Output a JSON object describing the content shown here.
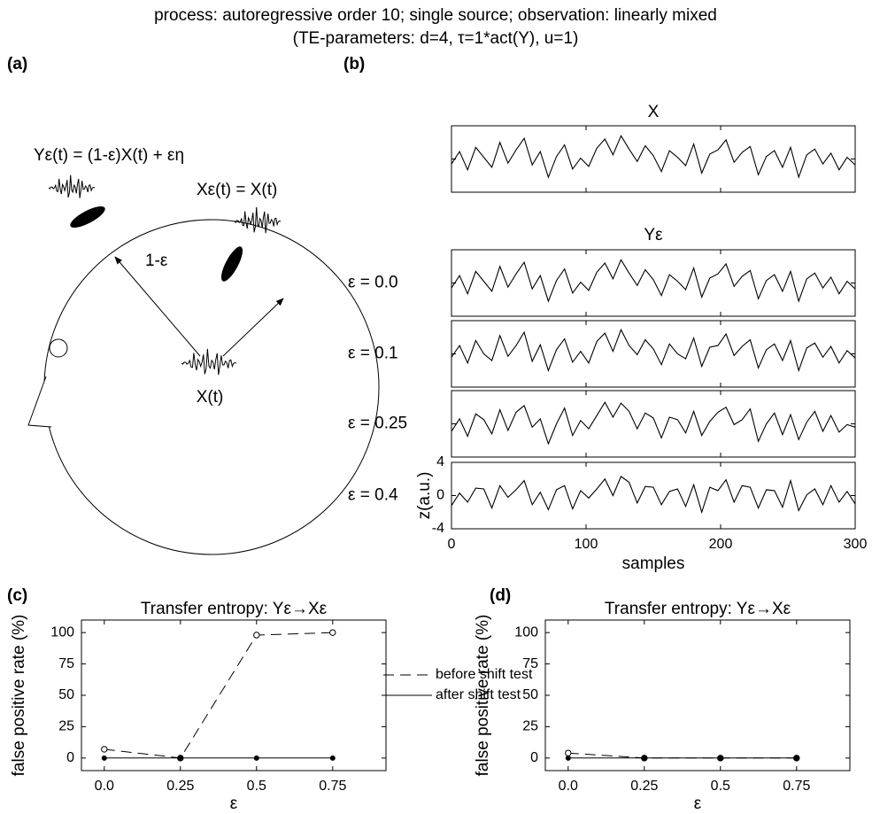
{
  "title": "process: autoregressive order 10; single source; observation: linearly mixed",
  "subtitle": "(TE-parameters: d=4, τ=1*act(Y), u=1)",
  "diagram": {
    "panel": "(a)",
    "y_label": "Yε(t) = (1-ε)X(t) + εη",
    "x_label": "Xε(t) = X(t)",
    "arrow_label": "1-ε",
    "source_label": "X(t)"
  },
  "chart_data": [
    {
      "type": "line",
      "panel": "(b)",
      "small_multiples": true,
      "group_title": "Yε",
      "x": [
        0,
        6,
        12,
        18,
        24,
        30,
        36,
        42,
        48,
        54,
        60,
        66,
        72,
        78,
        84,
        90,
        96,
        102,
        108,
        114,
        120,
        126,
        132,
        138,
        144,
        150,
        156,
        162,
        168,
        174,
        180,
        186,
        192,
        198,
        204,
        210,
        216,
        222,
        228,
        234,
        240,
        246,
        252,
        258,
        264,
        270,
        276,
        282,
        288,
        294,
        300
      ],
      "xlim": [
        0,
        300
      ],
      "xticks": [
        0,
        100,
        200,
        300
      ],
      "ylim": [
        -4,
        4
      ],
      "yticks": [
        -4,
        0,
        4
      ],
      "xlabel": "samples",
      "ylabel": "z(a.u.)",
      "series": [
        {
          "name": "X",
          "color": "#000000",
          "values": [
            -0.6,
            0.9,
            -1.3,
            1.4,
            0.2,
            -1.0,
            2.0,
            -0.5,
            1.1,
            2.5,
            -0.7,
            0.9,
            -2.2,
            0.3,
            1.7,
            -1.2,
            0.1,
            -0.9,
            1.3,
            2.4,
            0.5,
            2.8,
            1.2,
            -0.3,
            1.6,
            0.4,
            -1.5,
            1.0,
            0.2,
            -0.8,
            1.8,
            -1.7,
            0.6,
            1.1,
            2.3,
            -0.4,
            0.8,
            1.5,
            -1.9,
            0.3,
            1.0,
            -1.0,
            1.4,
            -2.2,
            0.5,
            1.2,
            -0.6,
            0.7,
            -1.3,
            0.2,
            -0.7
          ]
        },
        {
          "name": "ε = 0.0",
          "color": "#000000",
          "values": [
            -0.6,
            0.9,
            -1.3,
            1.4,
            0.2,
            -1.0,
            2.0,
            -0.5,
            1.1,
            2.5,
            -0.7,
            0.9,
            -2.2,
            0.3,
            1.7,
            -1.2,
            0.1,
            -0.9,
            1.3,
            2.4,
            0.5,
            2.8,
            1.2,
            -0.3,
            1.6,
            0.4,
            -1.5,
            1.0,
            0.2,
            -0.8,
            1.8,
            -1.7,
            0.6,
            1.1,
            2.3,
            -0.4,
            0.8,
            1.5,
            -1.9,
            0.3,
            1.0,
            -1.0,
            1.4,
            -2.2,
            0.5,
            1.2,
            -0.6,
            0.7,
            -1.3,
            0.2,
            -0.7
          ]
        },
        {
          "name": "ε = 0.1",
          "color": "#000000",
          "values": [
            -0.4,
            1.0,
            -1.1,
            1.6,
            0.0,
            -0.8,
            2.2,
            -0.3,
            1.0,
            2.6,
            -0.9,
            1.1,
            -2.0,
            0.5,
            1.8,
            -1.0,
            0.3,
            -1.1,
            1.5,
            2.5,
            0.3,
            2.9,
            1.0,
            -0.1,
            1.7,
            0.6,
            -1.3,
            1.2,
            0.0,
            -0.6,
            1.9,
            -1.5,
            0.8,
            1.0,
            2.4,
            -0.2,
            0.9,
            1.7,
            -1.7,
            0.5,
            1.2,
            -0.8,
            1.6,
            -2.0,
            0.7,
            1.3,
            -0.4,
            0.9,
            -1.1,
            0.4,
            -0.5
          ]
        },
        {
          "name": "ε = 0.25",
          "color": "#000000",
          "values": [
            -0.9,
            0.6,
            -1.5,
            1.2,
            0.5,
            -1.2,
            1.7,
            -0.8,
            1.4,
            2.2,
            -0.4,
            0.6,
            -2.4,
            0.0,
            1.9,
            -1.4,
            0.4,
            -0.6,
            1.0,
            2.6,
            0.8,
            2.5,
            1.5,
            -0.6,
            1.3,
            0.7,
            -1.7,
            0.8,
            0.5,
            -1.1,
            1.5,
            -1.4,
            0.3,
            1.4,
            2.0,
            -0.1,
            0.5,
            1.8,
            -2.1,
            0.0,
            1.3,
            -1.3,
            1.1,
            -1.9,
            0.2,
            1.5,
            -0.9,
            1.0,
            -1.0,
            -0.1,
            -0.4
          ]
        },
        {
          "name": "ε = 0.4",
          "color": "#000000",
          "values": [
            -1.2,
            0.3,
            -0.8,
            0.9,
            0.8,
            -1.5,
            1.2,
            -0.2,
            0.7,
            1.8,
            -1.1,
            0.4,
            -1.7,
            0.7,
            1.2,
            -1.6,
            0.6,
            -0.3,
            0.8,
            2.0,
            0.0,
            2.3,
            1.6,
            -0.9,
            1.1,
            1.0,
            -1.1,
            0.5,
            0.8,
            -1.3,
            1.3,
            -2.0,
            1.0,
            0.6,
            1.9,
            -0.8,
            1.2,
            1.0,
            -1.5,
            0.7,
            0.6,
            -1.4,
            1.8,
            -1.8,
            0.1,
            0.8,
            -1.1,
            1.2,
            -0.8,
            0.5,
            -1.0
          ]
        }
      ]
    },
    {
      "type": "line",
      "panel": "(c)",
      "title": "Transfer entropy: Yε→Xε",
      "x": [
        0,
        0.25,
        0.5,
        0.75
      ],
      "xlim": [
        -0.075,
        0.925
      ],
      "xticks": [
        {
          "value": 0,
          "label": "0.0"
        },
        0.25,
        0.5,
        0.75
      ],
      "ylim": [
        -10,
        110
      ],
      "yticks": [
        0,
        25,
        50,
        75,
        100
      ],
      "xlabel": "ε",
      "ylabel": "false positive rate (%)",
      "legend": "right",
      "series": [
        {
          "name": "before shift test",
          "color": "#000000",
          "dash": true,
          "marker": "open",
          "values": [
            7,
            0,
            98,
            100
          ]
        },
        {
          "name": "after shift test",
          "color": "#000000",
          "dash": false,
          "marker": "filled",
          "values": [
            0,
            0,
            0,
            0
          ]
        }
      ]
    },
    {
      "type": "line",
      "panel": "(d)",
      "title": "Transfer entropy: Yε→Xε",
      "x": [
        0,
        0.25,
        0.5,
        0.75
      ],
      "xlim": [
        -0.075,
        0.925
      ],
      "xticks": [
        {
          "value": 0,
          "label": "0.0"
        },
        0.25,
        0.5,
        0.75
      ],
      "ylim": [
        -10,
        110
      ],
      "yticks": [
        0,
        25,
        50,
        75,
        100
      ],
      "xlabel": "ε",
      "ylabel": "false positive rate (%)",
      "series": [
        {
          "color": "#000000",
          "dash": true,
          "marker": "open",
          "values": [
            4,
            0,
            0,
            0
          ]
        },
        {
          "color": "#000000",
          "dash": false,
          "marker": "filled",
          "values": [
            0,
            0,
            0,
            0
          ]
        }
      ]
    }
  ]
}
